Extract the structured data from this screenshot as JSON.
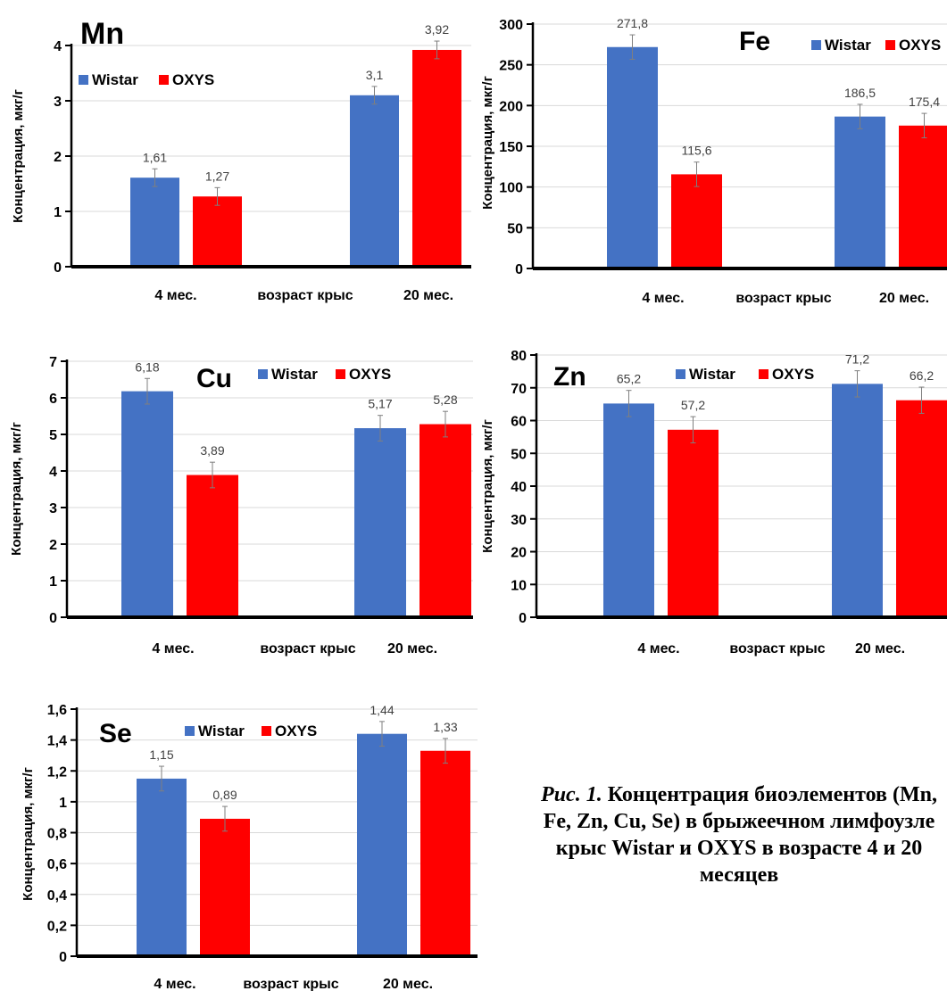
{
  "colors": {
    "wistar": "#4472C4",
    "oxys": "#FF0000",
    "axis": "#000000"
  },
  "chart_data": [
    {
      "type": "bar",
      "title": "Mn",
      "categories": [
        "4 мес.",
        "20 мес."
      ],
      "xlabel": "возраст крыс",
      "ylabel": "Концентрация, мкг/г",
      "ylim": [
        0,
        4
      ],
      "yticks": [
        "0",
        "1",
        "2",
        "3",
        "4"
      ],
      "legend_position": "top-left",
      "series": [
        {
          "name": "Wistar",
          "values": [
            1.61,
            3.1
          ],
          "labels": [
            "1,61",
            "3,1"
          ]
        },
        {
          "name": "OXYS",
          "values": [
            1.27,
            3.92
          ],
          "labels": [
            "1,27",
            "3,92"
          ]
        }
      ]
    },
    {
      "type": "bar",
      "title": "Fe",
      "categories": [
        "4 мес.",
        "20 мес."
      ],
      "xlabel": "возраст крыс",
      "ylabel": "Концентрация, мкг/г",
      "ylim": [
        0,
        300
      ],
      "yticks": [
        "0",
        "50",
        "100",
        "150",
        "200",
        "250",
        "300"
      ],
      "legend_position": "top-right",
      "series": [
        {
          "name": "Wistar",
          "values": [
            271.8,
            186.5
          ],
          "labels": [
            "271,8",
            "186,5"
          ]
        },
        {
          "name": "OXYS",
          "values": [
            115.6,
            175.4
          ],
          "labels": [
            "115,6",
            "175,4"
          ]
        }
      ]
    },
    {
      "type": "bar",
      "title": "Cu",
      "categories": [
        "4 мес.",
        "20 мес."
      ],
      "xlabel": "возраст крыс",
      "ylabel": "Концентрация, мкг/г",
      "ylim": [
        0,
        7
      ],
      "yticks": [
        "0",
        "1",
        "2",
        "3",
        "4",
        "5",
        "6",
        "7"
      ],
      "legend_position": "top-right",
      "series": [
        {
          "name": "Wistar",
          "values": [
            6.18,
            5.17
          ],
          "labels": [
            "6,18",
            "5,17"
          ]
        },
        {
          "name": "OXYS",
          "values": [
            3.89,
            5.28
          ],
          "labels": [
            "3,89",
            "5,28"
          ]
        }
      ]
    },
    {
      "type": "bar",
      "title": "Zn",
      "categories": [
        "4 мес.",
        "20 мес."
      ],
      "xlabel": "возраст крыс",
      "ylabel": "Концентрация, мкг/г",
      "ylim": [
        0,
        80
      ],
      "yticks": [
        "0",
        "10",
        "20",
        "30",
        "40",
        "50",
        "60",
        "70",
        "80"
      ],
      "legend_position": "top-center",
      "series": [
        {
          "name": "Wistar",
          "values": [
            65.2,
            71.2
          ],
          "labels": [
            "65,2",
            "71,2"
          ]
        },
        {
          "name": "OXYS",
          "values": [
            57.2,
            66.2
          ],
          "labels": [
            "57,2",
            "66,2"
          ]
        }
      ]
    },
    {
      "type": "bar",
      "title": "Se",
      "categories": [
        "4 мес.",
        "20 мес."
      ],
      "xlabel": "возраст крыс",
      "ylabel": "Концентрация, мкг/г",
      "ylim": [
        0,
        1.6
      ],
      "yticks": [
        "0",
        "0,2",
        "0,4",
        "0,6",
        "0,8",
        "1",
        "1,2",
        "1,4",
        "1,6"
      ],
      "legend_position": "top-center",
      "series": [
        {
          "name": "Wistar",
          "values": [
            1.15,
            1.44
          ],
          "labels": [
            "1,15",
            "1,44"
          ]
        },
        {
          "name": "OXYS",
          "values": [
            0.89,
            1.33
          ],
          "labels": [
            "0,89",
            "1,33"
          ]
        }
      ]
    }
  ],
  "caption": {
    "fig_label": "Рис. 1.",
    "text": "Концентрация биоэлементов (Mn, Fe, Zn, Cu, Se) в брыжеечном лимфоузле крыс Wistar и OXYS в возрасте 4 и 20 месяцев"
  }
}
